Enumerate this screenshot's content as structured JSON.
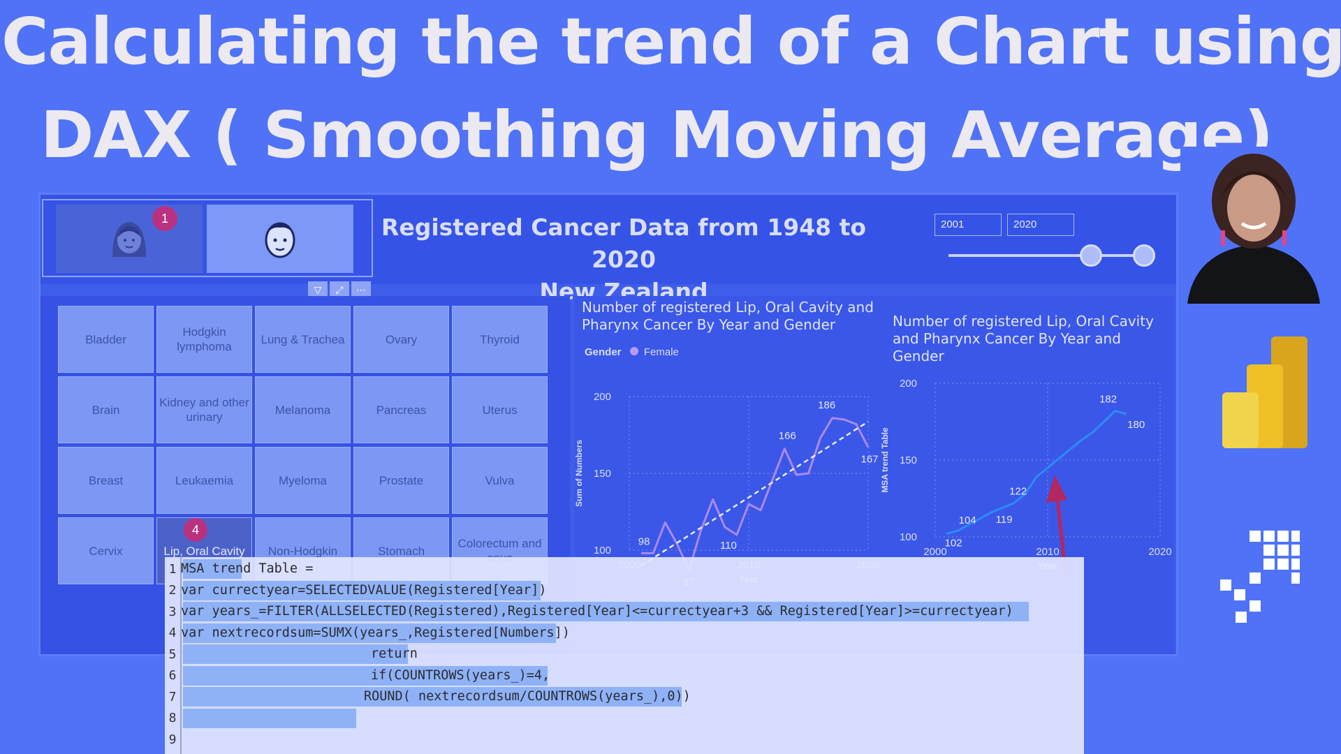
{
  "headline": {
    "line1": "Calculating the trend of a Chart using",
    "line2": "DAX ( Smoothing Moving Average)"
  },
  "report": {
    "title_line1": "Registered Cancer Data from 1948 to 2020",
    "title_line2": "New Zealand",
    "year_from": "2001",
    "year_to": "2020",
    "gender_marker": "1",
    "tile_marker": "4",
    "tiles": [
      "Bladder",
      "Hodgkin lymphoma",
      "Lung & Trachea",
      "Ovary",
      "Thyroid",
      "Brain",
      "Kidney and other urinary",
      "Melanoma",
      "Pancreas",
      "Uterus",
      "Breast",
      "Leukaemia",
      "Myeloma",
      "Prostate",
      "Vulva",
      "Cervix",
      "Lip, Oral Cavity",
      "Non-Hodgkin",
      "Stomach",
      "Colorectum and anus"
    ]
  },
  "chart1": {
    "title_line1": "Number of registered Lip, Oral Cavity and",
    "title_line2": "Pharynx Cancer By Year and Gender",
    "legend_title": "Gender",
    "legend_item": "Female"
  },
  "chart2": {
    "title_line1": "Number of registered Lip, Oral Cavity",
    "title_line2": "and Pharynx Cancer By Year and Gender"
  },
  "chart_data": [
    {
      "type": "line",
      "title": "Number of registered Lip, Oral Cavity and Pharynx Cancer By Year and Gender",
      "xlabel": "Year",
      "ylabel": "Sum of Numbers",
      "xlim": [
        2000,
        2020
      ],
      "ylim": [
        100,
        200
      ],
      "x_ticks": [
        "2000",
        "2010",
        "2020"
      ],
      "y_ticks": [
        "100",
        "150",
        "200"
      ],
      "trendline": true,
      "series": [
        {
          "name": "Female",
          "x": [
            2001,
            2002,
            2003,
            2004,
            2005,
            2006,
            2007,
            2008,
            2009,
            2010,
            2011,
            2012,
            2013,
            2014,
            2015,
            2016,
            2017,
            2018,
            2019,
            2020
          ],
          "values": [
            98,
            98,
            118,
            104,
            87,
            113,
            133,
            115,
            110,
            130,
            126,
            146,
            166,
            149,
            150,
            173,
            186,
            185,
            182,
            167
          ]
        }
      ],
      "data_labels": [
        {
          "x": 2001,
          "value": 98
        },
        {
          "x": 2005,
          "value": 87
        },
        {
          "x": 2009,
          "value": 110
        },
        {
          "x": 2013,
          "value": 166
        },
        {
          "x": 2017,
          "value": 186
        },
        {
          "x": 2020,
          "value": 167
        }
      ]
    },
    {
      "type": "line",
      "title": "Number of registered Lip, Oral Cavity and Pharynx Cancer By Year and Gender",
      "xlabel": "Year",
      "ylabel": "MSA trend Table",
      "xlim": [
        2000,
        2020
      ],
      "ylim": [
        100,
        200
      ],
      "x_ticks": [
        "2000",
        "2010",
        "2020"
      ],
      "y_ticks": [
        "100",
        "150",
        "200"
      ],
      "series": [
        {
          "x": [
            2001,
            2002,
            2003,
            2004,
            2005,
            2006,
            2007,
            2008,
            2009,
            2010,
            2011,
            2012,
            2013,
            2014,
            2015,
            2016,
            2017
          ],
          "values": [
            102,
            104,
            108,
            112,
            116,
            119,
            122,
            128,
            139,
            145,
            151,
            157,
            163,
            168,
            175,
            182,
            180
          ]
        }
      ],
      "data_labels": [
        {
          "x": 2001,
          "value": 102
        },
        {
          "x": 2002,
          "value": 104
        },
        {
          "x": 2006,
          "value": 119
        },
        {
          "x": 2007,
          "value": 122
        },
        {
          "x": 2016,
          "value": 182
        },
        {
          "x": 2017,
          "value": 180
        }
      ]
    }
  ],
  "code": {
    "lines": [
      {
        "n": "1",
        "text": "MSA trend Table ="
      },
      {
        "n": "2",
        "text": "var currectyear=SELECTEDVALUE(Registered[Year])"
      },
      {
        "n": "3",
        "text": "var years_=FILTER(ALLSELECTED(Registered),Registered[Year]<=currectyear+3 && Registered[Year]>=currectyear)"
      },
      {
        "n": "4",
        "text": "var nextrecordsum=SUMX(years_,Registered[Numbers])"
      },
      {
        "n": "5",
        "text": "return"
      },
      {
        "n": "6",
        "text": "if(COUNTROWS(years_)=4,"
      },
      {
        "n": "7",
        "text": "ROUND( nextrecordsum/COUNTROWS(years_),0))"
      },
      {
        "n": "8",
        "text": ""
      },
      {
        "n": "9",
        "text": ""
      }
    ]
  }
}
